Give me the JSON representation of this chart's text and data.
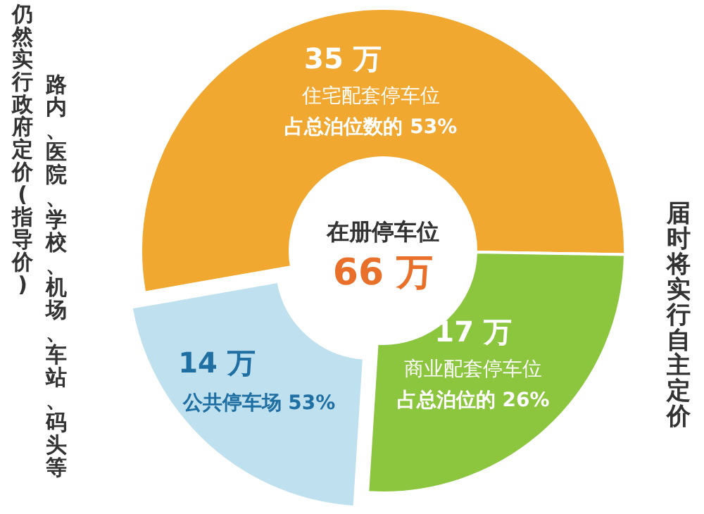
{
  "chart_data": {
    "type": "donut",
    "title": "在册停车位",
    "categories": [
      "住宅配套停车位",
      "商业配套停车位",
      "公共停车场"
    ],
    "values": [
      35,
      17,
      14
    ],
    "colors": [
      "#f0a830",
      "#8cc63f",
      "#bfe0ee"
    ],
    "value_labels": [
      "35 万",
      "17 万",
      "14 万"
    ],
    "annotations": [
      "占总泊位数的 53%",
      "占总泊位的 26%",
      "53%",
      "66 万",
      "仍然实行政府定价(指导价)",
      "路内、医院、学校、机场、车站、码头等",
      "届时将实行自主定价"
    ]
  }
}
